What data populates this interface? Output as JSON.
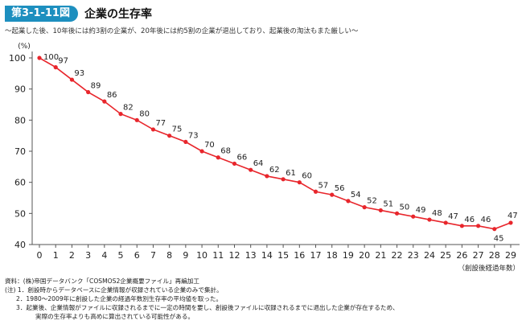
{
  "figure": {
    "label": "第3-1-11図",
    "title": "企業の生存率",
    "subtitle": "～起業した後、10年後には約3割の企業が、20年後には約5割の企業が退出しており、起業後の淘汰もまた厳しい～"
  },
  "chart_data": {
    "type": "line",
    "title": "企業の生存率",
    "y_unit": "(%)",
    "x_unit": "（創設後経過年数）",
    "ylim": [
      40,
      100
    ],
    "yticks": [
      40,
      50,
      60,
      70,
      80,
      90,
      100
    ],
    "x": [
      0,
      1,
      2,
      3,
      4,
      5,
      6,
      7,
      8,
      9,
      10,
      11,
      12,
      13,
      14,
      15,
      16,
      17,
      18,
      19,
      20,
      21,
      22,
      23,
      24,
      25,
      26,
      27,
      28,
      29
    ],
    "series": [
      {
        "values": [
          100,
          97,
          93,
          89,
          86,
          82,
          80,
          77,
          75,
          73,
          70,
          68,
          66,
          64,
          62,
          61,
          60,
          57,
          56,
          54,
          52,
          51,
          50,
          49,
          48,
          47,
          46,
          46,
          45,
          47
        ],
        "color": "#e8262c"
      }
    ],
    "grid": false,
    "legend": "none"
  },
  "notes": {
    "source": "資料：(株)帝国データバンク「COSMOS2企業概要ファイル」再編加工",
    "note1": "(注) 1．創設時からデータベースに企業情報が収録されている企業のみで集計。",
    "note2": "2．1980～2009年に創設した企業の経過年数別生存率の平均値を取った。",
    "note3a": "3．起業後、企業情報がファイルに収録されるまでに一定の時間を要し、創設後ファイルに収録されるまでに退出した企業が存在するため、",
    "note3b": "実際の生存率よりも高めに算出されている可能性がある。"
  }
}
